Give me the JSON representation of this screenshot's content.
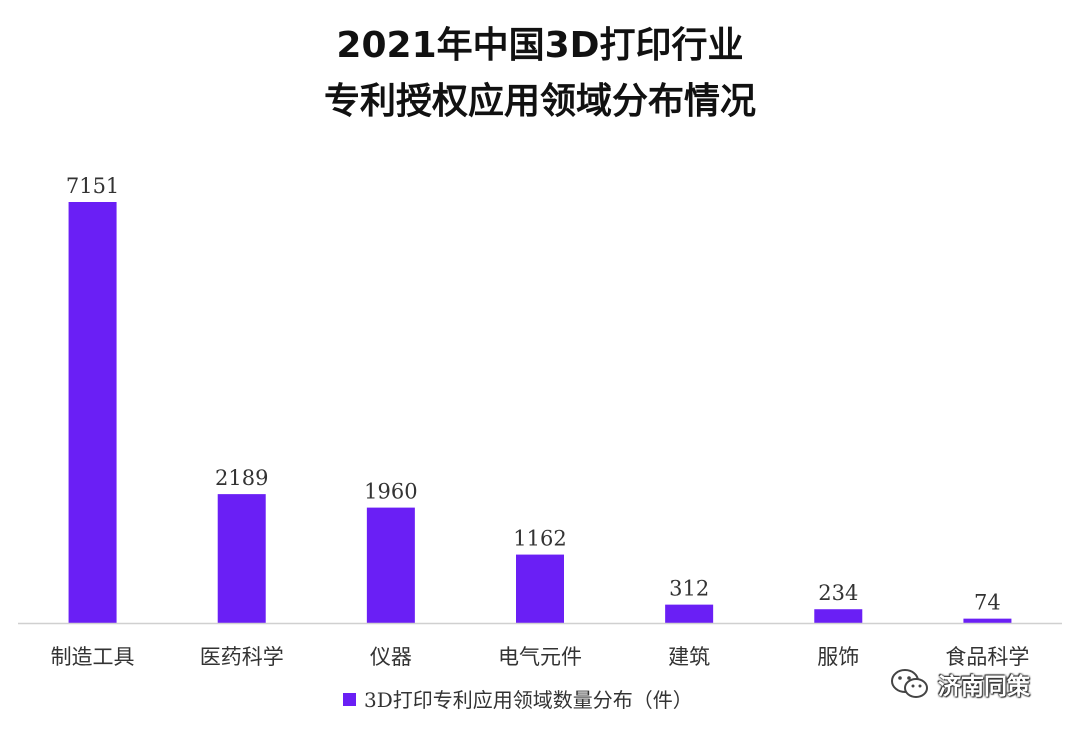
{
  "chart_data": {
    "type": "bar",
    "title_lines": [
      "2021年中国3D打印行业",
      "专利授权应用领域分布情况"
    ],
    "categories": [
      "制造工具",
      "医药科学",
      "仪器",
      "电气元件",
      "建筑",
      "服饰",
      "食品科学"
    ],
    "series": [
      {
        "name": "3D打印专利应用领域数量分布（件）",
        "values": [
          7151,
          2189,
          1960,
          1162,
          312,
          234,
          74
        ],
        "color": "#6a1ff5"
      }
    ],
    "ylim": [
      0,
      7151
    ],
    "grid": false,
    "legend_position": "bottom-center"
  },
  "watermark": {
    "text": "济南同策",
    "icon": "wechat-icon"
  }
}
